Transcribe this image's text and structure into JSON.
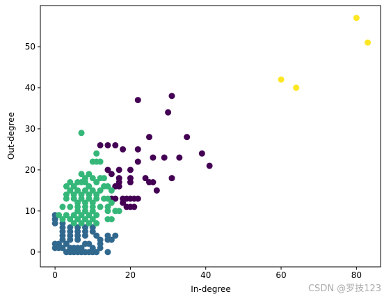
{
  "chart_data": {
    "type": "scatter",
    "x_label": "In-degree",
    "y_label": "Out-degree",
    "annotation": "CSDN @罗技123",
    "xlim": [
      -3.9,
      86.4
    ],
    "ylim": [
      -3.6,
      60
    ],
    "xticks": [
      0,
      20,
      40,
      60,
      80
    ],
    "yticks": [
      0,
      10,
      20,
      30,
      40,
      50
    ],
    "series": [
      {
        "color": "#440154",
        "x": [
          22,
          31,
          30,
          25,
          35,
          12,
          14,
          16,
          18,
          22,
          39,
          26,
          29,
          33,
          22,
          41,
          14,
          15,
          17,
          20,
          17,
          17,
          20,
          20,
          24,
          25,
          26,
          31,
          27,
          16,
          18,
          19,
          20,
          21,
          22,
          18,
          19,
          20,
          21,
          15,
          16,
          17
        ],
        "values": [
          37,
          38,
          34,
          28,
          28,
          26,
          26,
          26,
          25,
          25,
          24,
          23,
          23,
          23,
          22,
          21,
          20,
          19,
          20,
          20,
          18,
          17,
          18,
          17,
          18,
          17,
          17,
          18,
          15,
          13,
          13,
          13,
          13,
          13,
          13,
          12,
          11,
          11,
          11,
          13,
          16,
          16
        ]
      },
      {
        "color": "#31688e",
        "x": [
          0,
          0,
          0,
          2,
          2,
          2,
          2,
          2,
          4,
          4,
          4,
          4,
          6,
          6,
          6,
          6,
          8,
          8,
          8,
          10,
          10,
          11,
          12,
          14,
          14,
          16,
          15,
          0,
          0,
          1,
          1,
          2,
          3,
          4,
          5,
          6,
          7,
          8,
          9,
          10,
          11,
          14,
          5,
          6,
          7,
          9,
          12,
          3,
          8,
          10,
          12,
          4
        ],
        "values": [
          9,
          8,
          7,
          7,
          6,
          5,
          4,
          3,
          6,
          5,
          4,
          3,
          6,
          5,
          4,
          3,
          6,
          5,
          4,
          6,
          5,
          4,
          3,
          4,
          3,
          4,
          3,
          2,
          1,
          2,
          1,
          1,
          0,
          0,
          0,
          0,
          0,
          0,
          0,
          0,
          0,
          0,
          1,
          1,
          1,
          2,
          2,
          2,
          2,
          1,
          1,
          1
        ]
      },
      {
        "color": "#35b779",
        "x": [
          7,
          11,
          10,
          11,
          12,
          7,
          9,
          8,
          10,
          11,
          12,
          13,
          4,
          6,
          7,
          8,
          9,
          5,
          3,
          4,
          6,
          8,
          10,
          12,
          13,
          14,
          15,
          3,
          5,
          7,
          9,
          11,
          13,
          14,
          15,
          2,
          4,
          6,
          8,
          10,
          12,
          14,
          1,
          3,
          5,
          7,
          9,
          11,
          2,
          4,
          6,
          8,
          10,
          14,
          15,
          17,
          16,
          6,
          8,
          10,
          5,
          7,
          9,
          11,
          14,
          3,
          5,
          7,
          9,
          11,
          8,
          10,
          6
        ],
        "values": [
          29,
          24,
          22,
          22,
          22,
          19,
          19,
          18,
          18,
          17,
          18,
          18,
          17,
          17,
          17,
          17,
          16,
          16,
          16,
          15,
          15,
          15,
          15,
          15,
          16,
          16,
          15,
          13,
          13,
          13,
          13,
          13,
          13,
          13,
          12,
          11,
          11,
          11,
          11,
          11,
          11,
          11,
          9,
          9,
          9,
          9,
          9,
          9,
          8,
          8,
          8,
          8,
          8,
          8,
          8,
          10,
          10,
          10,
          10,
          10,
          7,
          7,
          7,
          7,
          10,
          14,
          14,
          14,
          14,
          14,
          12,
          12,
          12
        ]
      },
      {
        "color": "#fde725",
        "x": [
          80,
          83,
          60,
          64
        ],
        "values": [
          57,
          51,
          42,
          40
        ]
      }
    ]
  }
}
